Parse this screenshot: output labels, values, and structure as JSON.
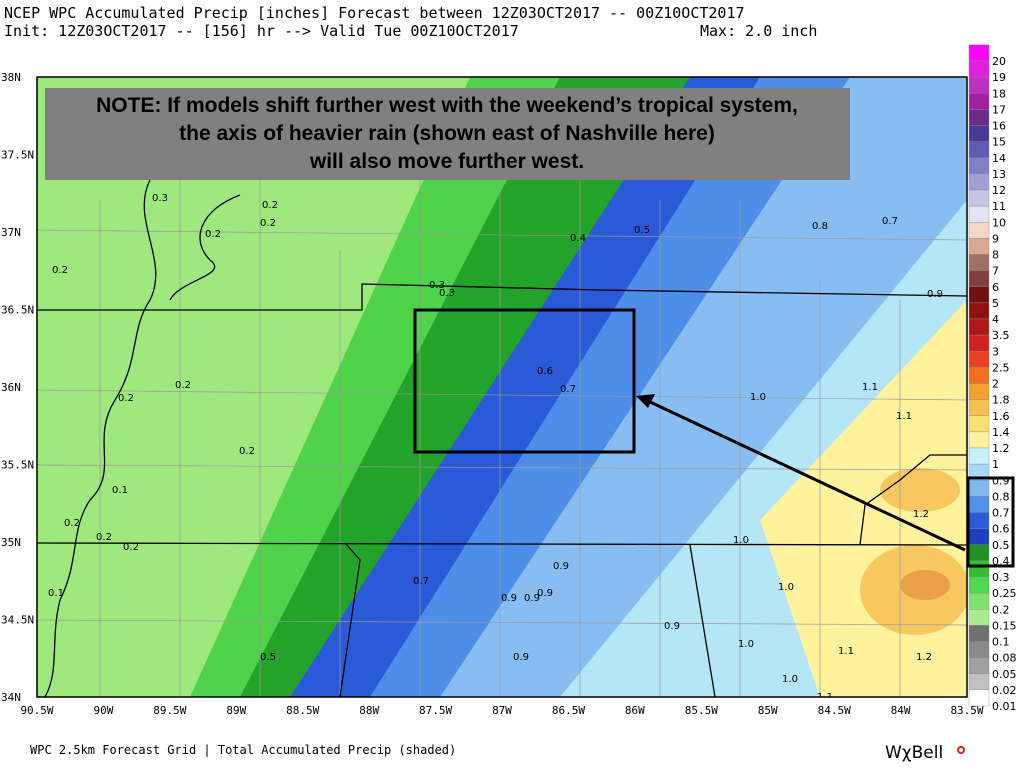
{
  "header": {
    "title": "NCEP WPC Accumulated Precip [inches] Forecast between 12Z03OCT2017 -- 00Z10OCT2017",
    "init": "Init: 12Z03OCT2017 -- [156] hr --> Valid Tue 00Z10OCT2017",
    "max": "Max: 2.0 inch"
  },
  "note": {
    "lines": [
      "NOTE: If models shift further west with the weekend’s tropical system,",
      "the axis of heavier rain (shown east of Nashville here)",
      "will also move further west."
    ]
  },
  "lat_labels": [
    "38N",
    "37.5N",
    "37N",
    "36.5N",
    "36N",
    "35.5N",
    "35N",
    "34.5N",
    "34N"
  ],
  "lon_labels": [
    "90.5W",
    "90W",
    "89.5W",
    "89W",
    "88.5W",
    "88W",
    "87.5W",
    "87W",
    "86.5W",
    "86W",
    "85.5W",
    "85W",
    "84.5W",
    "84W",
    "83.5W"
  ],
  "contour_labels": [
    "0.3",
    "0.2",
    "0.2",
    "0.2",
    "0.2",
    "0.4",
    "0.5",
    "0.8",
    "0.7",
    "0.3",
    "0.3",
    "0.9",
    "0.6",
    "0.7",
    "0.2",
    "0.2",
    "1.0",
    "1.1",
    "1.1",
    "0.2",
    "0.1",
    "0.2",
    "0.2",
    "0.2",
    "1.2",
    "1.0",
    "0.9",
    "0.7",
    "0.9",
    "0.9",
    "0.9",
    "1.0",
    "0.1",
    "0.9",
    "1.0",
    "1.1",
    "1.2",
    "0.5",
    "0.9",
    "1.0",
    "1.1"
  ],
  "legend": {
    "labels": [
      "20",
      "19",
      "18",
      "17",
      "16",
      "15",
      "14",
      "13",
      "12",
      "11",
      "10",
      "9",
      "8",
      "7",
      "6",
      "5",
      "4",
      "3.5",
      "3",
      "2.5",
      "2",
      "1.8",
      "1.6",
      "1.4",
      "1.2",
      "1",
      "0.9",
      "0.8",
      "0.7",
      "0.6",
      "0.5",
      "0.4",
      "0.3",
      "0.25",
      "0.2",
      "0.15",
      "0.1",
      "0.08",
      "0.05",
      "0.02",
      "0.01"
    ]
  },
  "footer": {
    "caption": "WPC 2.5km Forecast Grid | Total Accumulated Precip (shaded)",
    "logo": "WχBell"
  }
}
